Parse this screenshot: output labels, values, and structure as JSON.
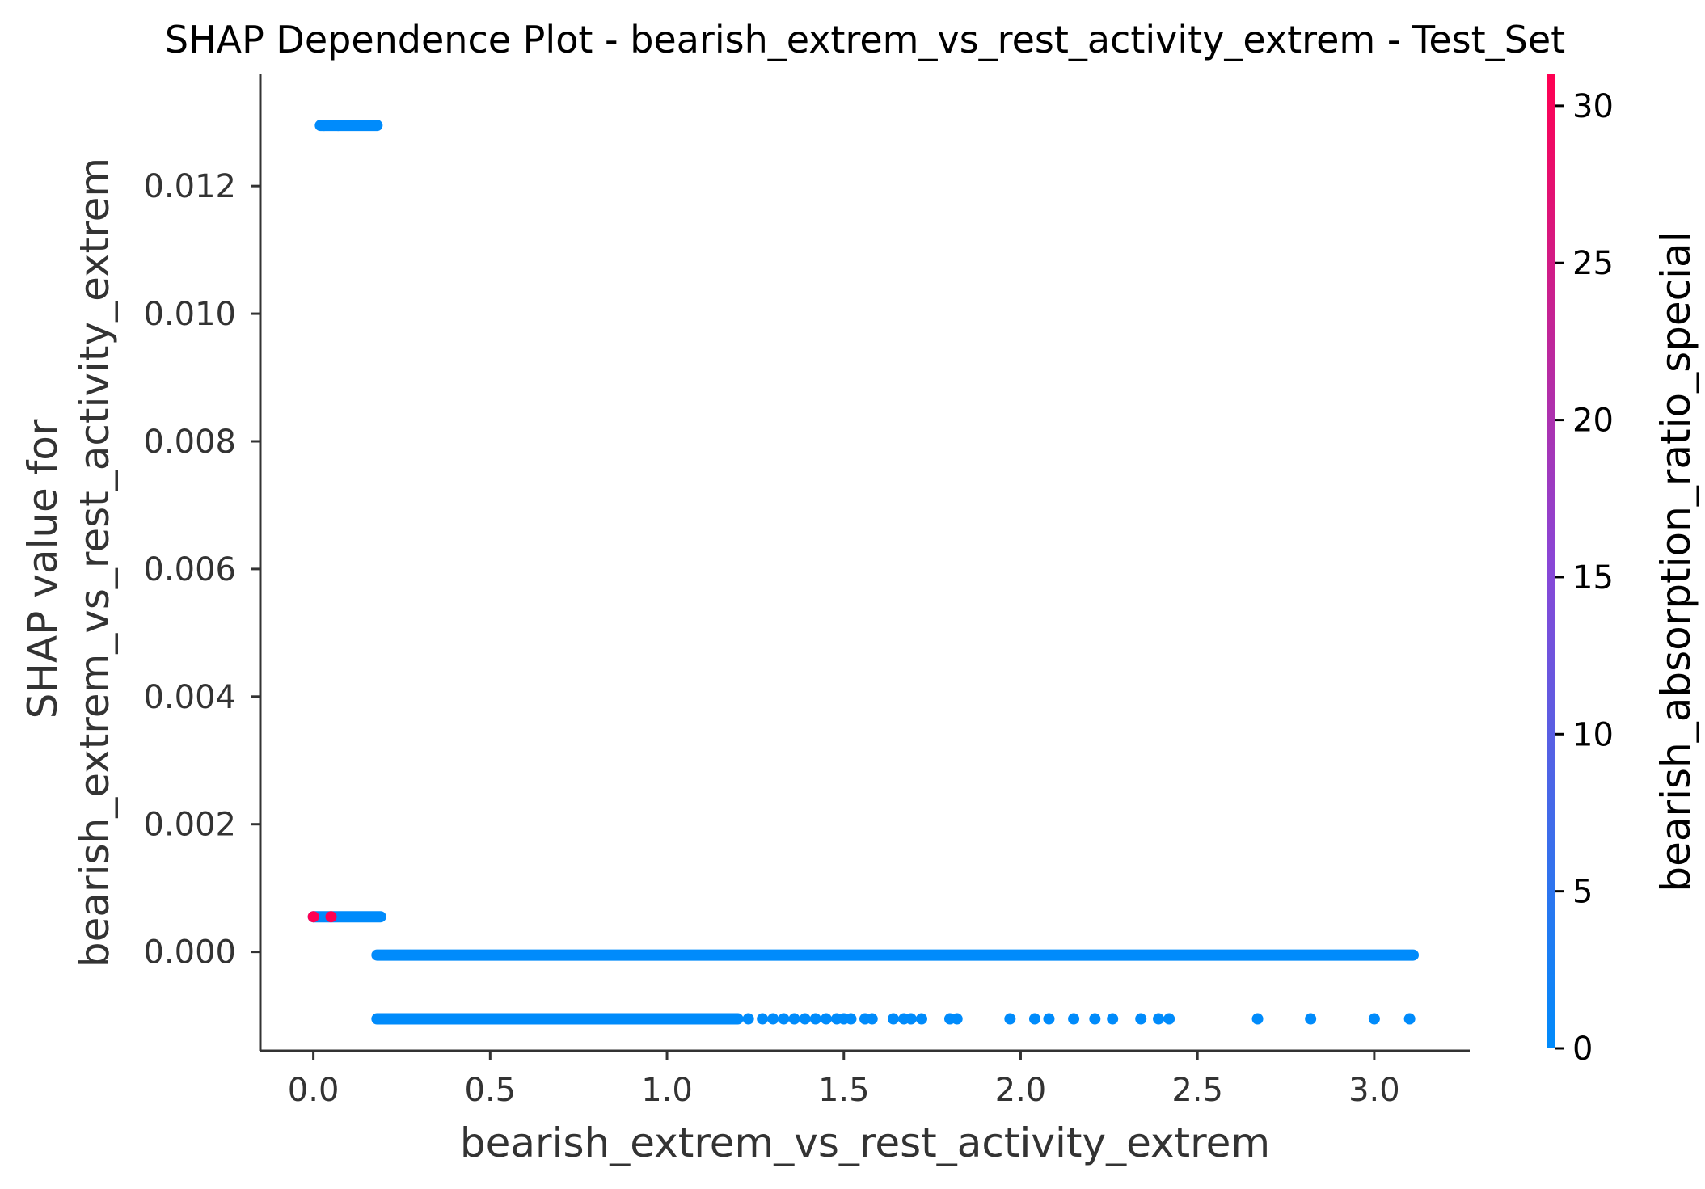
{
  "chart_data": {
    "type": "scatter",
    "title": "SHAP Dependence Plot - bearish_extrem_vs_rest_activity_extrem - Test_Set",
    "xlabel": "bearish_extrem_vs_rest_activity_extrem",
    "ylabel_lines": [
      "SHAP value for",
      "bearish_extrem_vs_rest_activity_extrem"
    ],
    "colorbar_label": "bearish_absorption_ratio_special",
    "xlim": [
      -0.15,
      3.27
    ],
    "ylim": [
      -0.00155,
      0.01375
    ],
    "x_ticks": [
      0.0,
      0.5,
      1.0,
      1.5,
      2.0,
      2.5,
      3.0
    ],
    "x_tick_labels": [
      "0.0",
      "0.5",
      "1.0",
      "1.5",
      "2.0",
      "2.5",
      "3.0"
    ],
    "y_ticks": [
      0.0,
      0.002,
      0.004,
      0.006,
      0.008,
      0.01,
      0.012
    ],
    "y_tick_labels": [
      "0.000",
      "0.002",
      "0.004",
      "0.006",
      "0.008",
      "0.010",
      "0.012"
    ],
    "colorbar_range": [
      0,
      31
    ],
    "colorbar_ticks": [
      0,
      5,
      10,
      15,
      20,
      25,
      30
    ],
    "colorbar_tick_labels": [
      "0",
      "5",
      "10",
      "15",
      "20",
      "25",
      "30"
    ],
    "colors": {
      "low": "#008bfb",
      "mid": "#8a46d6",
      "high": "#ff0052",
      "axis": "#333333"
    },
    "grid": false,
    "bands": [
      {
        "y": 0.01295,
        "x_from": 0.02,
        "x_to": 0.18,
        "color_value": 0
      },
      {
        "y": 0.00055,
        "x_from": 0.0,
        "x_to": 0.19,
        "color_value": 0
      },
      {
        "y": -5e-05,
        "x_from": 0.18,
        "x_to": 3.11,
        "color_value": 0
      },
      {
        "y": -0.00105,
        "x_from": 0.18,
        "x_to": 1.2,
        "color_value": 0
      }
    ],
    "points": [
      {
        "x": 0.0,
        "y": 0.00055,
        "color_value": 31
      },
      {
        "x": 0.05,
        "y": 0.00055,
        "color_value": 31
      },
      {
        "x": 0.03,
        "y": 0.01295,
        "color_value": 0
      },
      {
        "x": 0.07,
        "y": 0.01295,
        "color_value": 0
      },
      {
        "x": 1.23,
        "y": -0.00105,
        "color_value": 0
      },
      {
        "x": 1.27,
        "y": -0.00105,
        "color_value": 0
      },
      {
        "x": 1.3,
        "y": -0.00105,
        "color_value": 0
      },
      {
        "x": 1.33,
        "y": -0.00105,
        "color_value": 0
      },
      {
        "x": 1.36,
        "y": -0.00105,
        "color_value": 0
      },
      {
        "x": 1.39,
        "y": -0.00105,
        "color_value": 0
      },
      {
        "x": 1.42,
        "y": -0.00105,
        "color_value": 0
      },
      {
        "x": 1.45,
        "y": -0.00105,
        "color_value": 0
      },
      {
        "x": 1.48,
        "y": -0.00105,
        "color_value": 0
      },
      {
        "x": 1.5,
        "y": -0.00105,
        "color_value": 0
      },
      {
        "x": 1.52,
        "y": -0.00105,
        "color_value": 0
      },
      {
        "x": 1.56,
        "y": -0.00105,
        "color_value": 0
      },
      {
        "x": 1.58,
        "y": -0.00105,
        "color_value": 0
      },
      {
        "x": 1.64,
        "y": -0.00105,
        "color_value": 0
      },
      {
        "x": 1.67,
        "y": -0.00105,
        "color_value": 0
      },
      {
        "x": 1.69,
        "y": -0.00105,
        "color_value": 0
      },
      {
        "x": 1.72,
        "y": -0.00105,
        "color_value": 0
      },
      {
        "x": 1.8,
        "y": -0.00105,
        "color_value": 0
      },
      {
        "x": 1.82,
        "y": -0.00105,
        "color_value": 0
      },
      {
        "x": 1.97,
        "y": -0.00105,
        "color_value": 0
      },
      {
        "x": 2.04,
        "y": -0.00105,
        "color_value": 0
      },
      {
        "x": 2.08,
        "y": -0.00105,
        "color_value": 0
      },
      {
        "x": 2.15,
        "y": -0.00105,
        "color_value": 0
      },
      {
        "x": 2.21,
        "y": -0.00105,
        "color_value": 0
      },
      {
        "x": 2.26,
        "y": -0.00105,
        "color_value": 0
      },
      {
        "x": 2.34,
        "y": -0.00105,
        "color_value": 0
      },
      {
        "x": 2.39,
        "y": -0.00105,
        "color_value": 0
      },
      {
        "x": 2.42,
        "y": -0.00105,
        "color_value": 0
      },
      {
        "x": 2.67,
        "y": -0.00105,
        "color_value": 0
      },
      {
        "x": 2.82,
        "y": -0.00105,
        "color_value": 0
      },
      {
        "x": 3.0,
        "y": -0.00105,
        "color_value": 0
      },
      {
        "x": 3.1,
        "y": -0.00105,
        "color_value": 0
      }
    ]
  }
}
